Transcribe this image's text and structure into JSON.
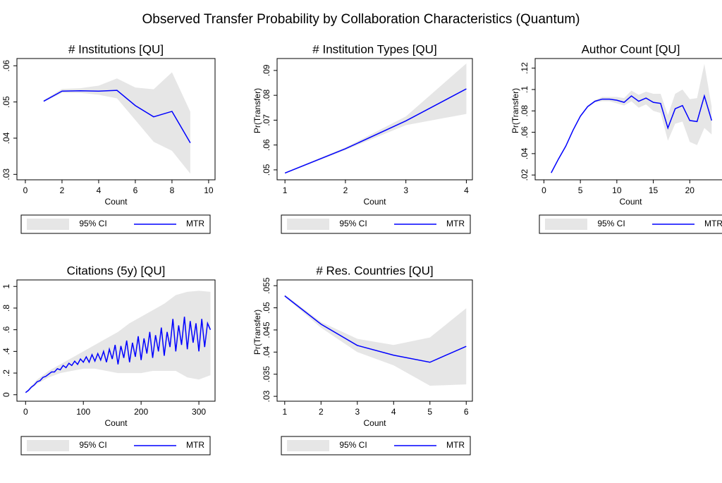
{
  "title": "Observed Transfer Probability by Collaboration Characteristics (Quantum)",
  "chart_data": [
    {
      "type": "line",
      "title": "# Institutions [QU]",
      "xlabel": "Count",
      "x": [
        1,
        2,
        3,
        4,
        5,
        6,
        7,
        8,
        9
      ],
      "xlim": [
        -0.46,
        10.35
      ],
      "ylim": [
        0.0285,
        0.062
      ],
      "xticks": [
        0,
        2,
        4,
        6,
        8,
        10
      ],
      "yticks": [
        {
          "value": 0.03,
          "label": ".03"
        },
        {
          "value": 0.04,
          "label": ".04"
        },
        {
          "value": 0.05,
          "label": ".05"
        },
        {
          "value": 0.06,
          "label": ".06"
        }
      ],
      "series": [
        {
          "name": "95% CI",
          "color": "#e6e6e6",
          "lower": [
            0.05,
            0.0525,
            0.0525,
            0.052,
            0.051,
            0.045,
            0.039,
            0.0365,
            0.0302
          ],
          "upper": [
            0.0505,
            0.0536,
            0.0538,
            0.0545,
            0.0565,
            0.054,
            0.0535,
            0.0582,
            0.0473
          ]
        },
        {
          "name": "MTR",
          "color": "#0000ff",
          "values": [
            0.0502,
            0.053,
            0.0531,
            0.053,
            0.0532,
            0.049,
            0.0459,
            0.0474,
            0.0387
          ]
        }
      ]
    },
    {
      "type": "line",
      "title": "# Institution Types [QU]",
      "xlabel": "Count",
      "ylabel": "Pr(Transfer)",
      "x": [
        1,
        2,
        3,
        4
      ],
      "xlim": [
        0.87,
        4.1
      ],
      "ylim": [
        0.046,
        0.0948
      ],
      "xticks": [
        1,
        2,
        3,
        4
      ],
      "yticks": [
        {
          "value": 0.05,
          "label": ".05"
        },
        {
          "value": 0.06,
          "label": ".06"
        },
        {
          "value": 0.07,
          "label": ".07"
        },
        {
          "value": 0.08,
          "label": ".08"
        },
        {
          "value": 0.09,
          "label": ".09"
        }
      ],
      "series": [
        {
          "name": "95% CI",
          "color": "#e6e6e6",
          "lower": [
            0.0485,
            0.058,
            0.068,
            0.0725
          ],
          "upper": [
            0.049,
            0.059,
            0.0715,
            0.0928
          ]
        },
        {
          "name": "MTR",
          "color": "#0000ff",
          "values": [
            0.0487,
            0.0585,
            0.0697,
            0.0826
          ]
        }
      ]
    },
    {
      "type": "line",
      "title": "Author Count [QU]",
      "xlabel": "Count",
      "ylabel": "Pr(Transfer)",
      "x": [
        1,
        2,
        3,
        4,
        5,
        6,
        7,
        8,
        9,
        10,
        11,
        12,
        13,
        14,
        15,
        16,
        17,
        18,
        19,
        20,
        21,
        22,
        23
      ],
      "xlim": [
        -1.2,
        25
      ],
      "ylim": [
        0.0155,
        0.129
      ],
      "xticks": [
        0,
        5,
        10,
        15,
        20
      ],
      "yticks": [
        {
          "value": 0.02,
          "label": ".02"
        },
        {
          "value": 0.04,
          "label": ".04"
        },
        {
          "value": 0.06,
          "label": ".06"
        },
        {
          "value": 0.08,
          "label": ".08"
        },
        {
          "value": 0.1,
          "label": ".1"
        },
        {
          "value": 0.12,
          "label": ".12"
        }
      ],
      "series": [
        {
          "name": "95% CI",
          "color": "#e6e6e6",
          "lower": [
            0.021,
            0.034,
            0.046,
            0.061,
            0.074,
            0.083,
            0.088,
            0.089,
            0.089,
            0.087,
            0.085,
            0.089,
            0.083,
            0.086,
            0.08,
            0.078,
            0.052,
            0.068,
            0.07,
            0.051,
            0.048,
            0.064,
            0.058
          ],
          "upper": [
            0.023,
            0.036,
            0.048,
            0.063,
            0.076,
            0.085,
            0.09,
            0.093,
            0.093,
            0.093,
            0.092,
            0.099,
            0.095,
            0.098,
            0.096,
            0.096,
            0.076,
            0.096,
            0.1,
            0.091,
            0.092,
            0.124,
            0.084
          ]
        },
        {
          "name": "MTR",
          "color": "#0000ff",
          "values": [
            0.022,
            0.035,
            0.047,
            0.062,
            0.075,
            0.084,
            0.089,
            0.091,
            0.091,
            0.09,
            0.088,
            0.094,
            0.089,
            0.092,
            0.088,
            0.087,
            0.064,
            0.082,
            0.085,
            0.071,
            0.07,
            0.094,
            0.071
          ]
        }
      ]
    },
    {
      "type": "line",
      "title": "Citations (5y) [QU]",
      "xlabel": "Count",
      "x": [
        0,
        5,
        10,
        15,
        20,
        25,
        30,
        35,
        40,
        45,
        50,
        55,
        60,
        65,
        70,
        75,
        80,
        85,
        90,
        95,
        100,
        105,
        110,
        115,
        120,
        125,
        130,
        135,
        140,
        145,
        150,
        155,
        160,
        165,
        170,
        175,
        180,
        185,
        190,
        195,
        200,
        205,
        210,
        215,
        220,
        225,
        230,
        235,
        240,
        245,
        250,
        255,
        260,
        265,
        270,
        275,
        280,
        285,
        290,
        295,
        300,
        305,
        310,
        315,
        320
      ],
      "xlim": [
        -15,
        328
      ],
      "ylim": [
        -0.06,
        1.06
      ],
      "xticks": [
        0,
        100,
        200,
        300
      ],
      "yticks": [
        0,
        {
          "value": 0.2,
          "label": ".2"
        },
        {
          "value": 0.4,
          "label": ".4"
        },
        {
          "value": 0.6,
          "label": ".6"
        },
        {
          "value": 0.8,
          "label": ".8"
        },
        1
      ],
      "series": [
        {
          "name": "95% CI",
          "color": "#e6e6e6",
          "x": [
            0,
            20,
            40,
            60,
            80,
            100,
            120,
            140,
            160,
            180,
            200,
            220,
            240,
            260,
            280,
            300,
            320
          ],
          "lower": [
            0.015,
            0.1,
            0.16,
            0.2,
            0.22,
            0.24,
            0.24,
            0.22,
            0.2,
            0.2,
            0.2,
            0.22,
            0.22,
            0.22,
            0.16,
            0.14,
            0.18
          ],
          "upper": [
            0.025,
            0.14,
            0.22,
            0.28,
            0.34,
            0.4,
            0.46,
            0.52,
            0.58,
            0.66,
            0.72,
            0.78,
            0.84,
            0.92,
            0.95,
            0.96,
            0.95
          ]
        },
        {
          "name": "MTR",
          "color": "#0000ff",
          "values": [
            0.02,
            0.04,
            0.07,
            0.09,
            0.12,
            0.13,
            0.16,
            0.17,
            0.19,
            0.21,
            0.21,
            0.24,
            0.23,
            0.27,
            0.25,
            0.29,
            0.27,
            0.31,
            0.28,
            0.33,
            0.3,
            0.35,
            0.3,
            0.37,
            0.31,
            0.38,
            0.32,
            0.4,
            0.3,
            0.42,
            0.33,
            0.46,
            0.28,
            0.45,
            0.34,
            0.5,
            0.3,
            0.48,
            0.35,
            0.54,
            0.32,
            0.52,
            0.38,
            0.58,
            0.34,
            0.55,
            0.4,
            0.62,
            0.36,
            0.58,
            0.44,
            0.7,
            0.4,
            0.64,
            0.46,
            0.72,
            0.42,
            0.68,
            0.48,
            0.66,
            0.4,
            0.7,
            0.44,
            0.66,
            0.6
          ]
        }
      ]
    },
    {
      "type": "line",
      "title": "# Res. Countries [QU]",
      "xlabel": "Count",
      "ylabel": "Pr(Transfer)",
      "x": [
        1,
        2,
        3,
        4,
        5,
        6
      ],
      "xlim": [
        0.79,
        6.17
      ],
      "ylim": [
        0.0289,
        0.0563
      ],
      "xticks": [
        1,
        2,
        3,
        4,
        5,
        6
      ],
      "yticks": [
        {
          "value": 0.03,
          "label": ".03"
        },
        {
          "value": 0.035,
          "label": ".035"
        },
        {
          "value": 0.04,
          "label": ".04"
        },
        {
          "value": 0.045,
          "label": ".045"
        },
        {
          "value": 0.05,
          "label": ".05"
        },
        {
          "value": 0.055,
          "label": ".055"
        }
      ],
      "series": [
        {
          "name": "95% CI",
          "color": "#e6e6e6",
          "lower": [
            0.0525,
            0.0455,
            0.04,
            0.037,
            0.0324,
            0.0327
          ],
          "upper": [
            0.053,
            0.0468,
            0.043,
            0.0416,
            0.0433,
            0.0499
          ]
        },
        {
          "name": "MTR",
          "color": "#0000ff",
          "values": [
            0.0527,
            0.0463,
            0.0415,
            0.0393,
            0.0377,
            0.0413
          ]
        }
      ]
    }
  ]
}
